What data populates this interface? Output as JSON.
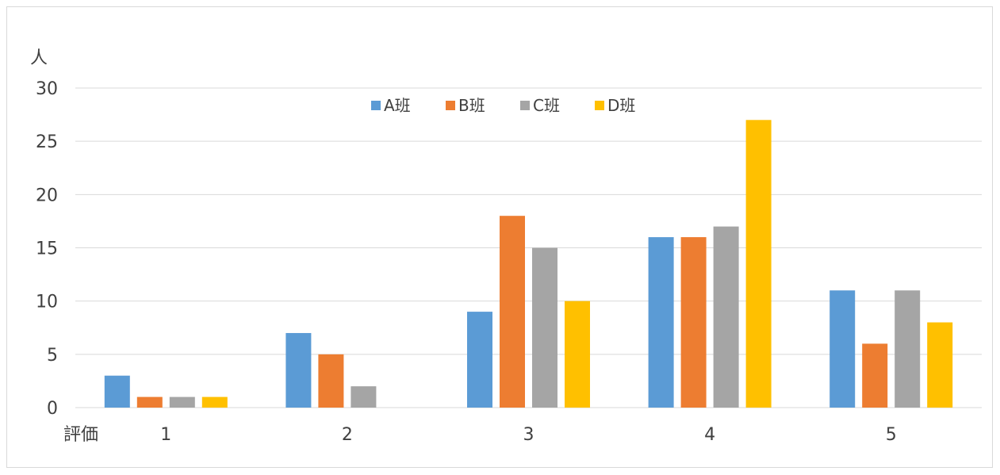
{
  "chart_data": {
    "type": "bar",
    "ylabel": "人",
    "xlabel": "評価",
    "categories": [
      "1",
      "2",
      "3",
      "4",
      "5"
    ],
    "series": [
      {
        "name": "A班",
        "color": "#5b9bd5",
        "values": [
          3,
          7,
          9,
          16,
          11
        ]
      },
      {
        "name": "B班",
        "color": "#ed7d31",
        "values": [
          1,
          5,
          18,
          16,
          6
        ]
      },
      {
        "name": "C班",
        "color": "#a5a5a5",
        "values": [
          1,
          2,
          15,
          17,
          11
        ]
      },
      {
        "name": "D班",
        "color": "#ffc000",
        "values": [
          1,
          0,
          10,
          27,
          8
        ]
      }
    ],
    "ylim": [
      0,
      30
    ],
    "yticks": [
      0,
      5,
      10,
      15,
      20,
      25,
      30
    ],
    "grid": true,
    "legend_position": "top-center"
  }
}
